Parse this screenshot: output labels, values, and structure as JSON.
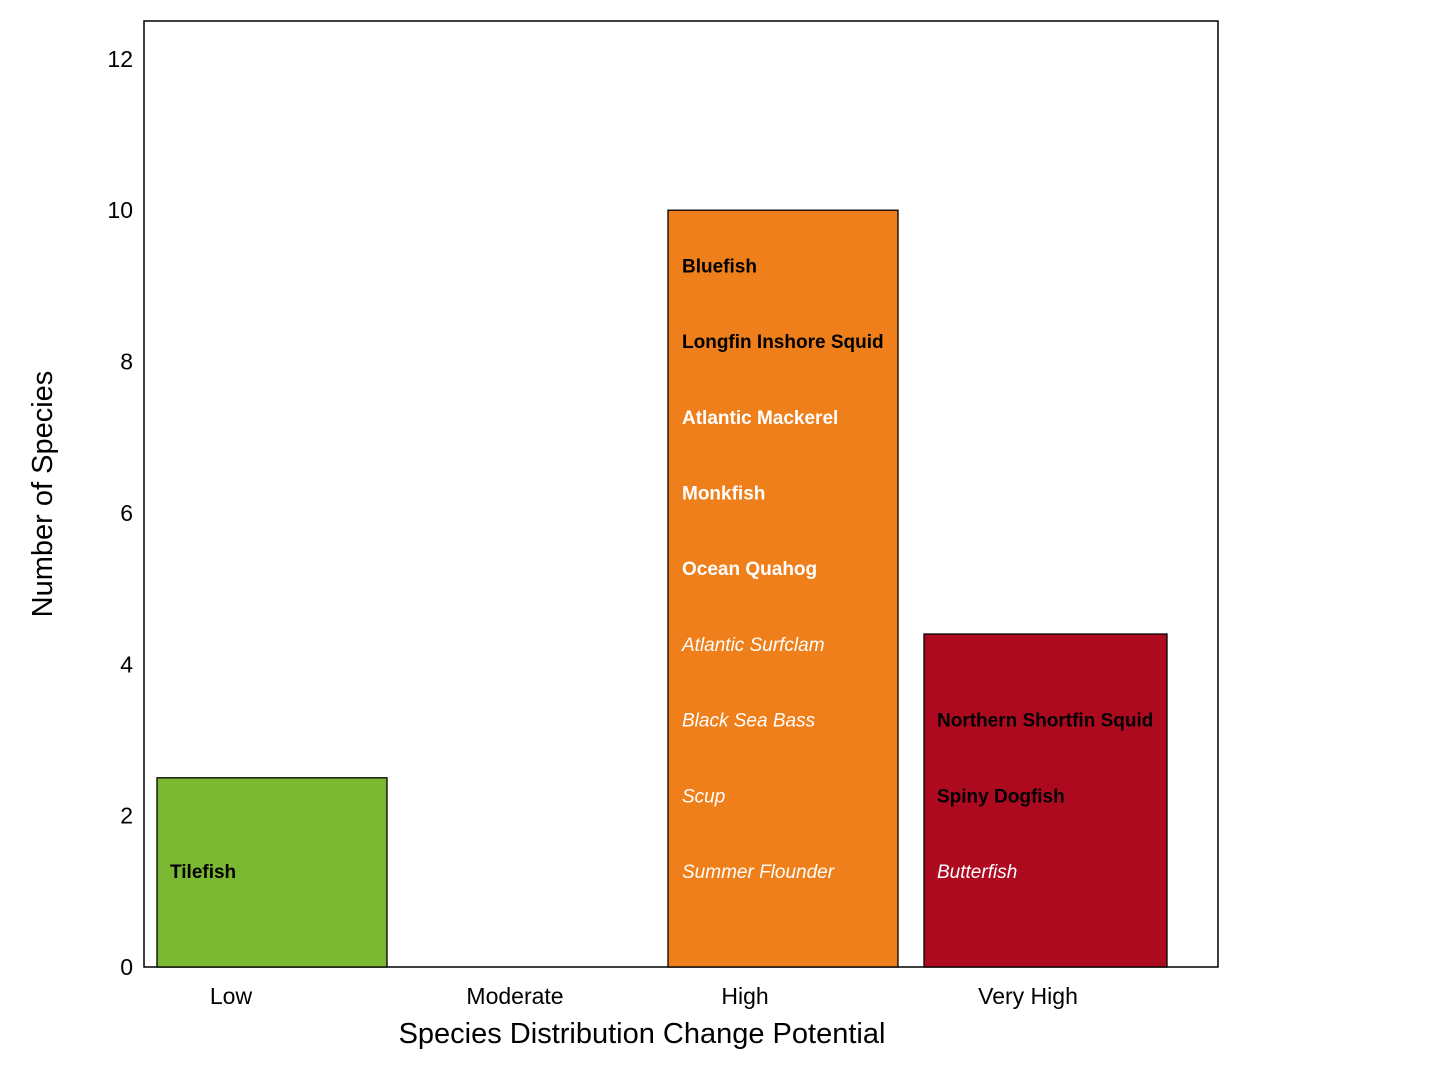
{
  "chart_data": {
    "type": "bar",
    "title": "",
    "xlabel": "Species Distribution Change Potential",
    "ylabel": "Number of Species",
    "ylim": [
      0,
      12.5
    ],
    "yticks": [
      "0",
      "2",
      "4",
      "6",
      "8",
      "10",
      "12"
    ],
    "ytick_values": [
      0,
      2,
      4,
      6,
      8,
      10,
      12
    ],
    "categories": [
      "Low",
      "Moderate",
      "High",
      "Very High"
    ],
    "values": [
      2.5,
      0,
      10,
      4.4
    ],
    "grid": false,
    "legend": "none",
    "bar_colors": [
      "#7cb932",
      null,
      "#ef7f1a",
      "#ad0a20"
    ],
    "species": [
      [
        {
          "name": "Tilefish",
          "style": "bold",
          "color": "#000000"
        }
      ],
      [],
      [
        {
          "name": "Bluefish",
          "style": "bold",
          "color": "#000000"
        },
        {
          "name": "Longfin Inshore Squid",
          "style": "bold",
          "color": "#000000"
        },
        {
          "name": "Atlantic Mackerel",
          "style": "bold",
          "color": "#ffffff"
        },
        {
          "name": "Monkfish",
          "style": "bold",
          "color": "#ffffff"
        },
        {
          "name": "Ocean Quahog",
          "style": "bold",
          "color": "#ffffff"
        },
        {
          "name": "Atlantic Surfclam",
          "style": "italic",
          "color": "#ffffff"
        },
        {
          "name": "Black Sea Bass",
          "style": "italic",
          "color": "#ffffff"
        },
        {
          "name": "Scup",
          "style": "italic",
          "color": "#ffffff"
        },
        {
          "name": "Summer Flounder",
          "style": "italic",
          "color": "#ffffff"
        }
      ],
      [
        {
          "name": "Northern Shortfin Squid",
          "style": "bold",
          "color": "#000000"
        },
        {
          "name": "Spiny Dogfish",
          "style": "bold",
          "color": "#000000"
        },
        {
          "name": "Butterfish",
          "style": "italic",
          "color": "#ffffff"
        }
      ]
    ]
  }
}
